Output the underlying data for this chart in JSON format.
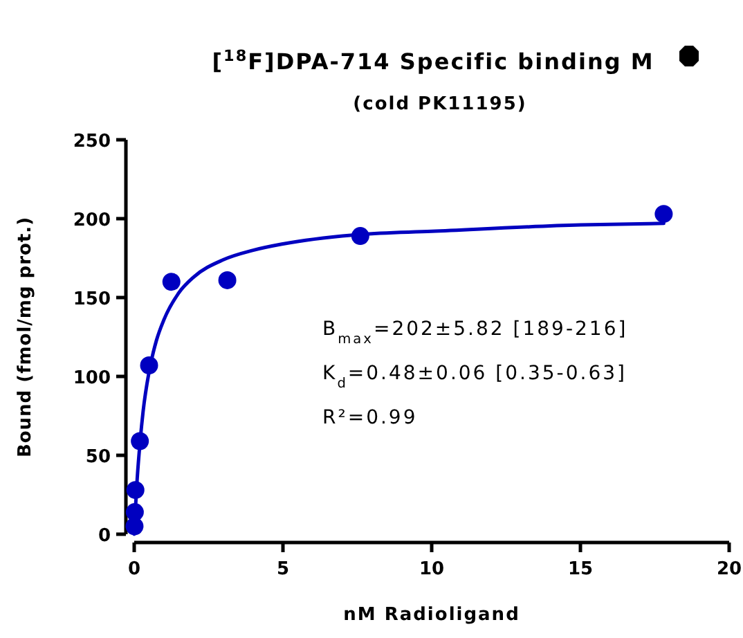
{
  "chart_data": {
    "type": "scatter",
    "title": "[$^{18}$F]DPA-714 Specific binding M",
    "subtitle": "(cold PK11195)",
    "xlabel": "nM Radioligand",
    "ylabel": "Bound (fmol/mg prot.)",
    "xlim": [
      0,
      20
    ],
    "xticks": [
      0,
      5,
      10,
      15,
      20
    ],
    "ylim": [
      0,
      250
    ],
    "yticks": [
      0,
      50,
      100,
      150,
      200,
      250
    ],
    "grid": false,
    "marker": "circle",
    "series": [
      {
        "color": "#0000c0",
        "x": [
          0.01,
          0.02,
          0.04,
          0.19,
          0.5,
          1.25,
          3.13,
          7.6,
          17.8
        ],
        "values": [
          5,
          14,
          28,
          59,
          107,
          160,
          161,
          189,
          203
        ]
      },
      {
        "type": "line",
        "color": "#0000c0",
        "marker": "none",
        "line_style": "solid",
        "x": [
          0,
          0.05,
          0.1,
          0.2,
          0.3,
          0.5,
          0.75,
          1,
          1.5,
          2,
          3,
          4,
          5,
          7.6,
          10,
          15,
          17.8
        ],
        "values": [
          0,
          19,
          35,
          59,
          78,
          103,
          123,
          136,
          153,
          163,
          174,
          180,
          184,
          190,
          192,
          196,
          197
        ]
      }
    ],
    "annotations": [
      "B$_{max}$=202±5.82 [189-216]",
      "K$_{d}$=0.48±0.06 [0.35-0.63]",
      "R²=0.99"
    ]
  }
}
